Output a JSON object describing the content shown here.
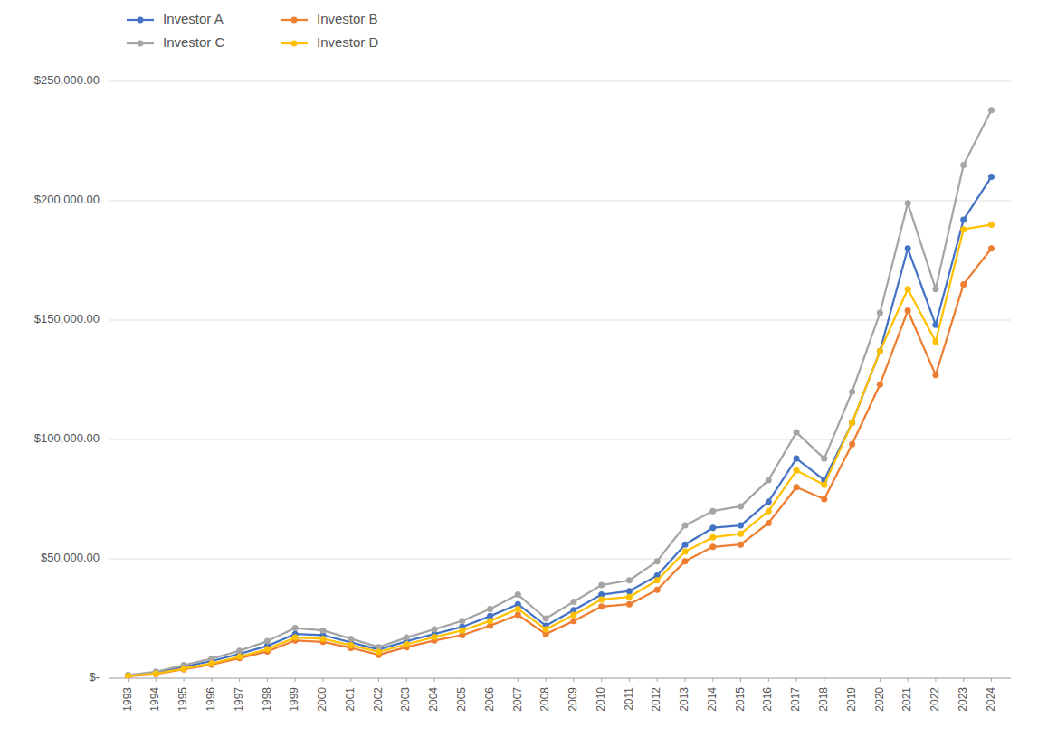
{
  "chart_data": {
    "type": "line",
    "x": [
      1993,
      1994,
      1995,
      1996,
      1997,
      1998,
      1999,
      2000,
      2001,
      2002,
      2003,
      2004,
      2005,
      2006,
      2007,
      2008,
      2009,
      2010,
      2011,
      2012,
      2013,
      2014,
      2015,
      2016,
      2017,
      2018,
      2019,
      2020,
      2021,
      2022,
      2023,
      2024
    ],
    "series": [
      {
        "name": "Investor A",
        "color": "#4472C4",
        "values": [
          1100,
          2300,
          4800,
          7200,
          10200,
          13500,
          18500,
          18000,
          15000,
          12000,
          15500,
          18500,
          21500,
          26000,
          31000,
          22000,
          28500,
          35000,
          36500,
          43000,
          56000,
          63000,
          64000,
          74000,
          92000,
          83000,
          107000,
          137000,
          180000,
          148000,
          192000,
          210000
        ]
      },
      {
        "name": "Investor B",
        "color": "#ED7D31",
        "values": [
          800,
          1700,
          3700,
          5700,
          8400,
          11200,
          15800,
          15200,
          12700,
          9800,
          13000,
          15800,
          18000,
          22000,
          26500,
          18500,
          24000,
          30000,
          31000,
          37000,
          49000,
          55000,
          56000,
          65000,
          80000,
          75000,
          98000,
          123000,
          154000,
          127000,
          165000,
          180000
        ]
      },
      {
        "name": "Investor C",
        "color": "#A5A5A5",
        "values": [
          1300,
          2700,
          5500,
          8200,
          11500,
          15500,
          21000,
          20000,
          16500,
          13000,
          17000,
          20500,
          24000,
          29000,
          35000,
          25000,
          32000,
          39000,
          41000,
          49000,
          64000,
          70000,
          72000,
          83000,
          103000,
          92000,
          120000,
          153000,
          199000,
          163000,
          215000,
          238000
        ]
      },
      {
        "name": "Investor D",
        "color": "#FFC000",
        "values": [
          900,
          1900,
          4000,
          6200,
          9000,
          12200,
          17000,
          16500,
          13800,
          11000,
          14200,
          17200,
          20000,
          24000,
          29000,
          20500,
          26500,
          33000,
          34000,
          41000,
          53000,
          59000,
          60500,
          70000,
          87000,
          81000,
          107000,
          137000,
          163000,
          141000,
          188000,
          190000
        ]
      }
    ],
    "xlim": [
      1992.3,
      2024.7
    ],
    "xticks": [
      1993,
      1994,
      1995,
      1996,
      1997,
      1998,
      1999,
      2000,
      2001,
      2002,
      2003,
      2004,
      2005,
      2006,
      2007,
      2008,
      2009,
      2010,
      2011,
      2012,
      2013,
      2014,
      2015,
      2016,
      2017,
      2018,
      2019,
      2020,
      2021,
      2022,
      2023,
      2024
    ],
    "ylim": [
      0,
      250000
    ],
    "yticks": [
      {
        "value": 0,
        "label": "$-"
      },
      {
        "value": 50000,
        "label": "$50,000.00"
      },
      {
        "value": 100000,
        "label": "$100,000.00"
      },
      {
        "value": 150000,
        "label": "$150,000.00"
      },
      {
        "value": 200000,
        "label": "$200,000.00"
      },
      {
        "value": 250000,
        "label": "$250,000.00"
      }
    ],
    "grid": true,
    "legend": "top-left",
    "marker": "circle"
  }
}
